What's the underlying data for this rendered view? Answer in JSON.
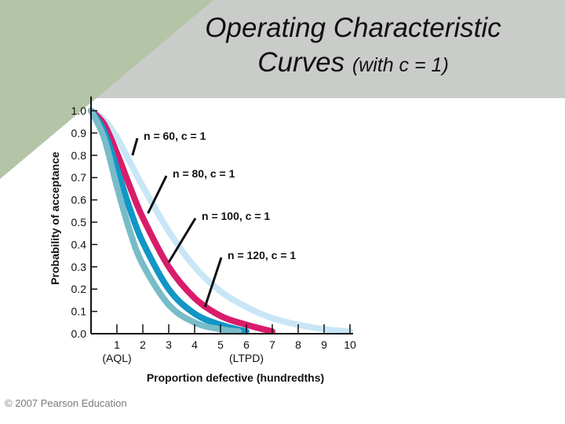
{
  "title": {
    "line1": "Operating Characteristic",
    "line2_main": "Curves",
    "line2_sub": "(with c = 1)"
  },
  "copyright": "© 2007 Pearson Education",
  "colors": {
    "background_band": "#c9ccc9",
    "n60": "#c8e6f6",
    "n80": "#d81c6a",
    "n100": "#1196c6",
    "n120": "#78bcc8"
  },
  "chart_data": {
    "type": "line",
    "title": "Operating Characteristic Curves (with c = 1)",
    "xlabel": "Proportion defective (hundredths)",
    "ylabel": "Probability of acceptance",
    "xlim": [
      0,
      10
    ],
    "ylim": [
      0,
      1
    ],
    "x_ticks": [
      {
        "value": 1,
        "label": "1",
        "sub": "(AQL)"
      },
      {
        "value": 2,
        "label": "2",
        "sub": ""
      },
      {
        "value": 3,
        "label": "3",
        "sub": ""
      },
      {
        "value": 4,
        "label": "4",
        "sub": ""
      },
      {
        "value": 5,
        "label": "5",
        "sub": ""
      },
      {
        "value": 6,
        "label": "6",
        "sub": "(LTPD)"
      },
      {
        "value": 7,
        "label": "7",
        "sub": ""
      },
      {
        "value": 8,
        "label": "8",
        "sub": ""
      },
      {
        "value": 9,
        "label": "9",
        "sub": ""
      },
      {
        "value": 10,
        "label": "10",
        "sub": ""
      }
    ],
    "y_ticks": [
      {
        "value": 0.0,
        "label": "0.0"
      },
      {
        "value": 0.1,
        "label": "0.1"
      },
      {
        "value": 0.2,
        "label": "0.2"
      },
      {
        "value": 0.3,
        "label": "0.3"
      },
      {
        "value": 0.4,
        "label": "0.4"
      },
      {
        "value": 0.5,
        "label": "0.5"
      },
      {
        "value": 0.6,
        "label": "0.6"
      },
      {
        "value": 0.7,
        "label": "0.7"
      },
      {
        "value": 0.8,
        "label": "0.8"
      },
      {
        "value": 0.9,
        "label": "0.9"
      },
      {
        "value": 1.0,
        "label": "1.0"
      }
    ],
    "grid": false,
    "series": [
      {
        "name": "n = 60, c = 1",
        "key": "n60",
        "x": [
          0,
          0.5,
          1,
          1.5,
          2,
          3,
          4,
          5,
          6,
          7,
          8,
          9,
          10
        ],
        "y": [
          1.0,
          0.96,
          0.88,
          0.77,
          0.66,
          0.46,
          0.3,
          0.19,
          0.12,
          0.07,
          0.04,
          0.02,
          0.01
        ]
      },
      {
        "name": "n = 80, c = 1",
        "key": "n80",
        "x": [
          0,
          0.5,
          1,
          1.5,
          2,
          3,
          4,
          5,
          6,
          7
        ],
        "y": [
          1.0,
          0.94,
          0.81,
          0.66,
          0.52,
          0.3,
          0.16,
          0.08,
          0.04,
          0.01
        ]
      },
      {
        "name": "n = 100, c = 1",
        "key": "n100",
        "x": [
          0,
          0.5,
          1,
          1.5,
          2,
          3,
          4,
          5,
          6
        ],
        "y": [
          1.0,
          0.91,
          0.74,
          0.56,
          0.41,
          0.2,
          0.09,
          0.04,
          0.01
        ]
      },
      {
        "name": "n = 120, c = 1",
        "key": "n120",
        "x": [
          0,
          0.5,
          1,
          1.5,
          2,
          3,
          4,
          5,
          5.7
        ],
        "y": [
          1.0,
          0.88,
          0.66,
          0.46,
          0.31,
          0.13,
          0.05,
          0.02,
          0.01
        ]
      }
    ],
    "annotations": [
      {
        "text": "n = 60, c = 1",
        "series": "n60",
        "point": [
          1.6,
          0.8
        ]
      },
      {
        "text": "n = 80, c = 1",
        "series": "n80",
        "point": [
          2.2,
          0.54
        ]
      },
      {
        "text": "n = 100, c = 1",
        "series": "n100",
        "point": [
          3.0,
          0.32
        ]
      },
      {
        "text": "n = 120, c = 1",
        "series": "n120",
        "point": [
          4.4,
          0.12
        ]
      }
    ]
  }
}
